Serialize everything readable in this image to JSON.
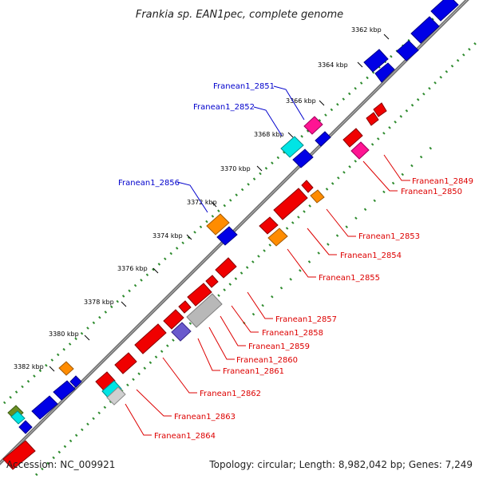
{
  "title": "Frankia sp. EAN1pec, complete genome",
  "footer": {
    "accession": "Accession: NC_009921",
    "stats": "Topology: circular; Length: 8,982,042 bp; Genes: 7,249"
  },
  "colors": {
    "backbone": "#808080",
    "dots": "#2e8b2e",
    "plus_label": "#0000cc",
    "minus_label": "#dd0000"
  },
  "ticks": [
    {
      "label": "3362 kbp"
    },
    {
      "label": "3364 kbp"
    },
    {
      "label": "3366 kbp"
    },
    {
      "label": "3368 kbp"
    },
    {
      "label": "3370 kbp"
    },
    {
      "label": "3372 kbp"
    },
    {
      "label": "3374 kbp"
    },
    {
      "label": "3376 kbp"
    },
    {
      "label": "3378 kbp"
    },
    {
      "label": "3380 kbp"
    },
    {
      "label": "3382 kbp"
    }
  ],
  "gene_labels": [
    {
      "text": "Franean1_2851",
      "strand": "plus"
    },
    {
      "text": "Franean1_2852",
      "strand": "plus"
    },
    {
      "text": "Franean1_2856",
      "strand": "plus"
    },
    {
      "text": "Franean1_2849",
      "strand": "minus"
    },
    {
      "text": "Franean1_2850",
      "strand": "minus"
    },
    {
      "text": "Franean1_2853",
      "strand": "minus"
    },
    {
      "text": "Franean1_2854",
      "strand": "minus"
    },
    {
      "text": "Franean1_2855",
      "strand": "minus"
    },
    {
      "text": "Franean1_2857",
      "strand": "minus"
    },
    {
      "text": "Franean1_2858",
      "strand": "minus"
    },
    {
      "text": "Franean1_2859",
      "strand": "minus"
    },
    {
      "text": "Franean1_2860",
      "strand": "minus"
    },
    {
      "text": "Franean1_2861",
      "strand": "minus"
    },
    {
      "text": "Franean1_2862",
      "strand": "minus"
    },
    {
      "text": "Franean1_2863",
      "strand": "minus"
    },
    {
      "text": "Franean1_2864",
      "strand": "minus"
    }
  ],
  "feature_colors": [
    "blue",
    "orange",
    "magenta",
    "cyan",
    "red",
    "grey",
    "slate-blue",
    "olive"
  ]
}
